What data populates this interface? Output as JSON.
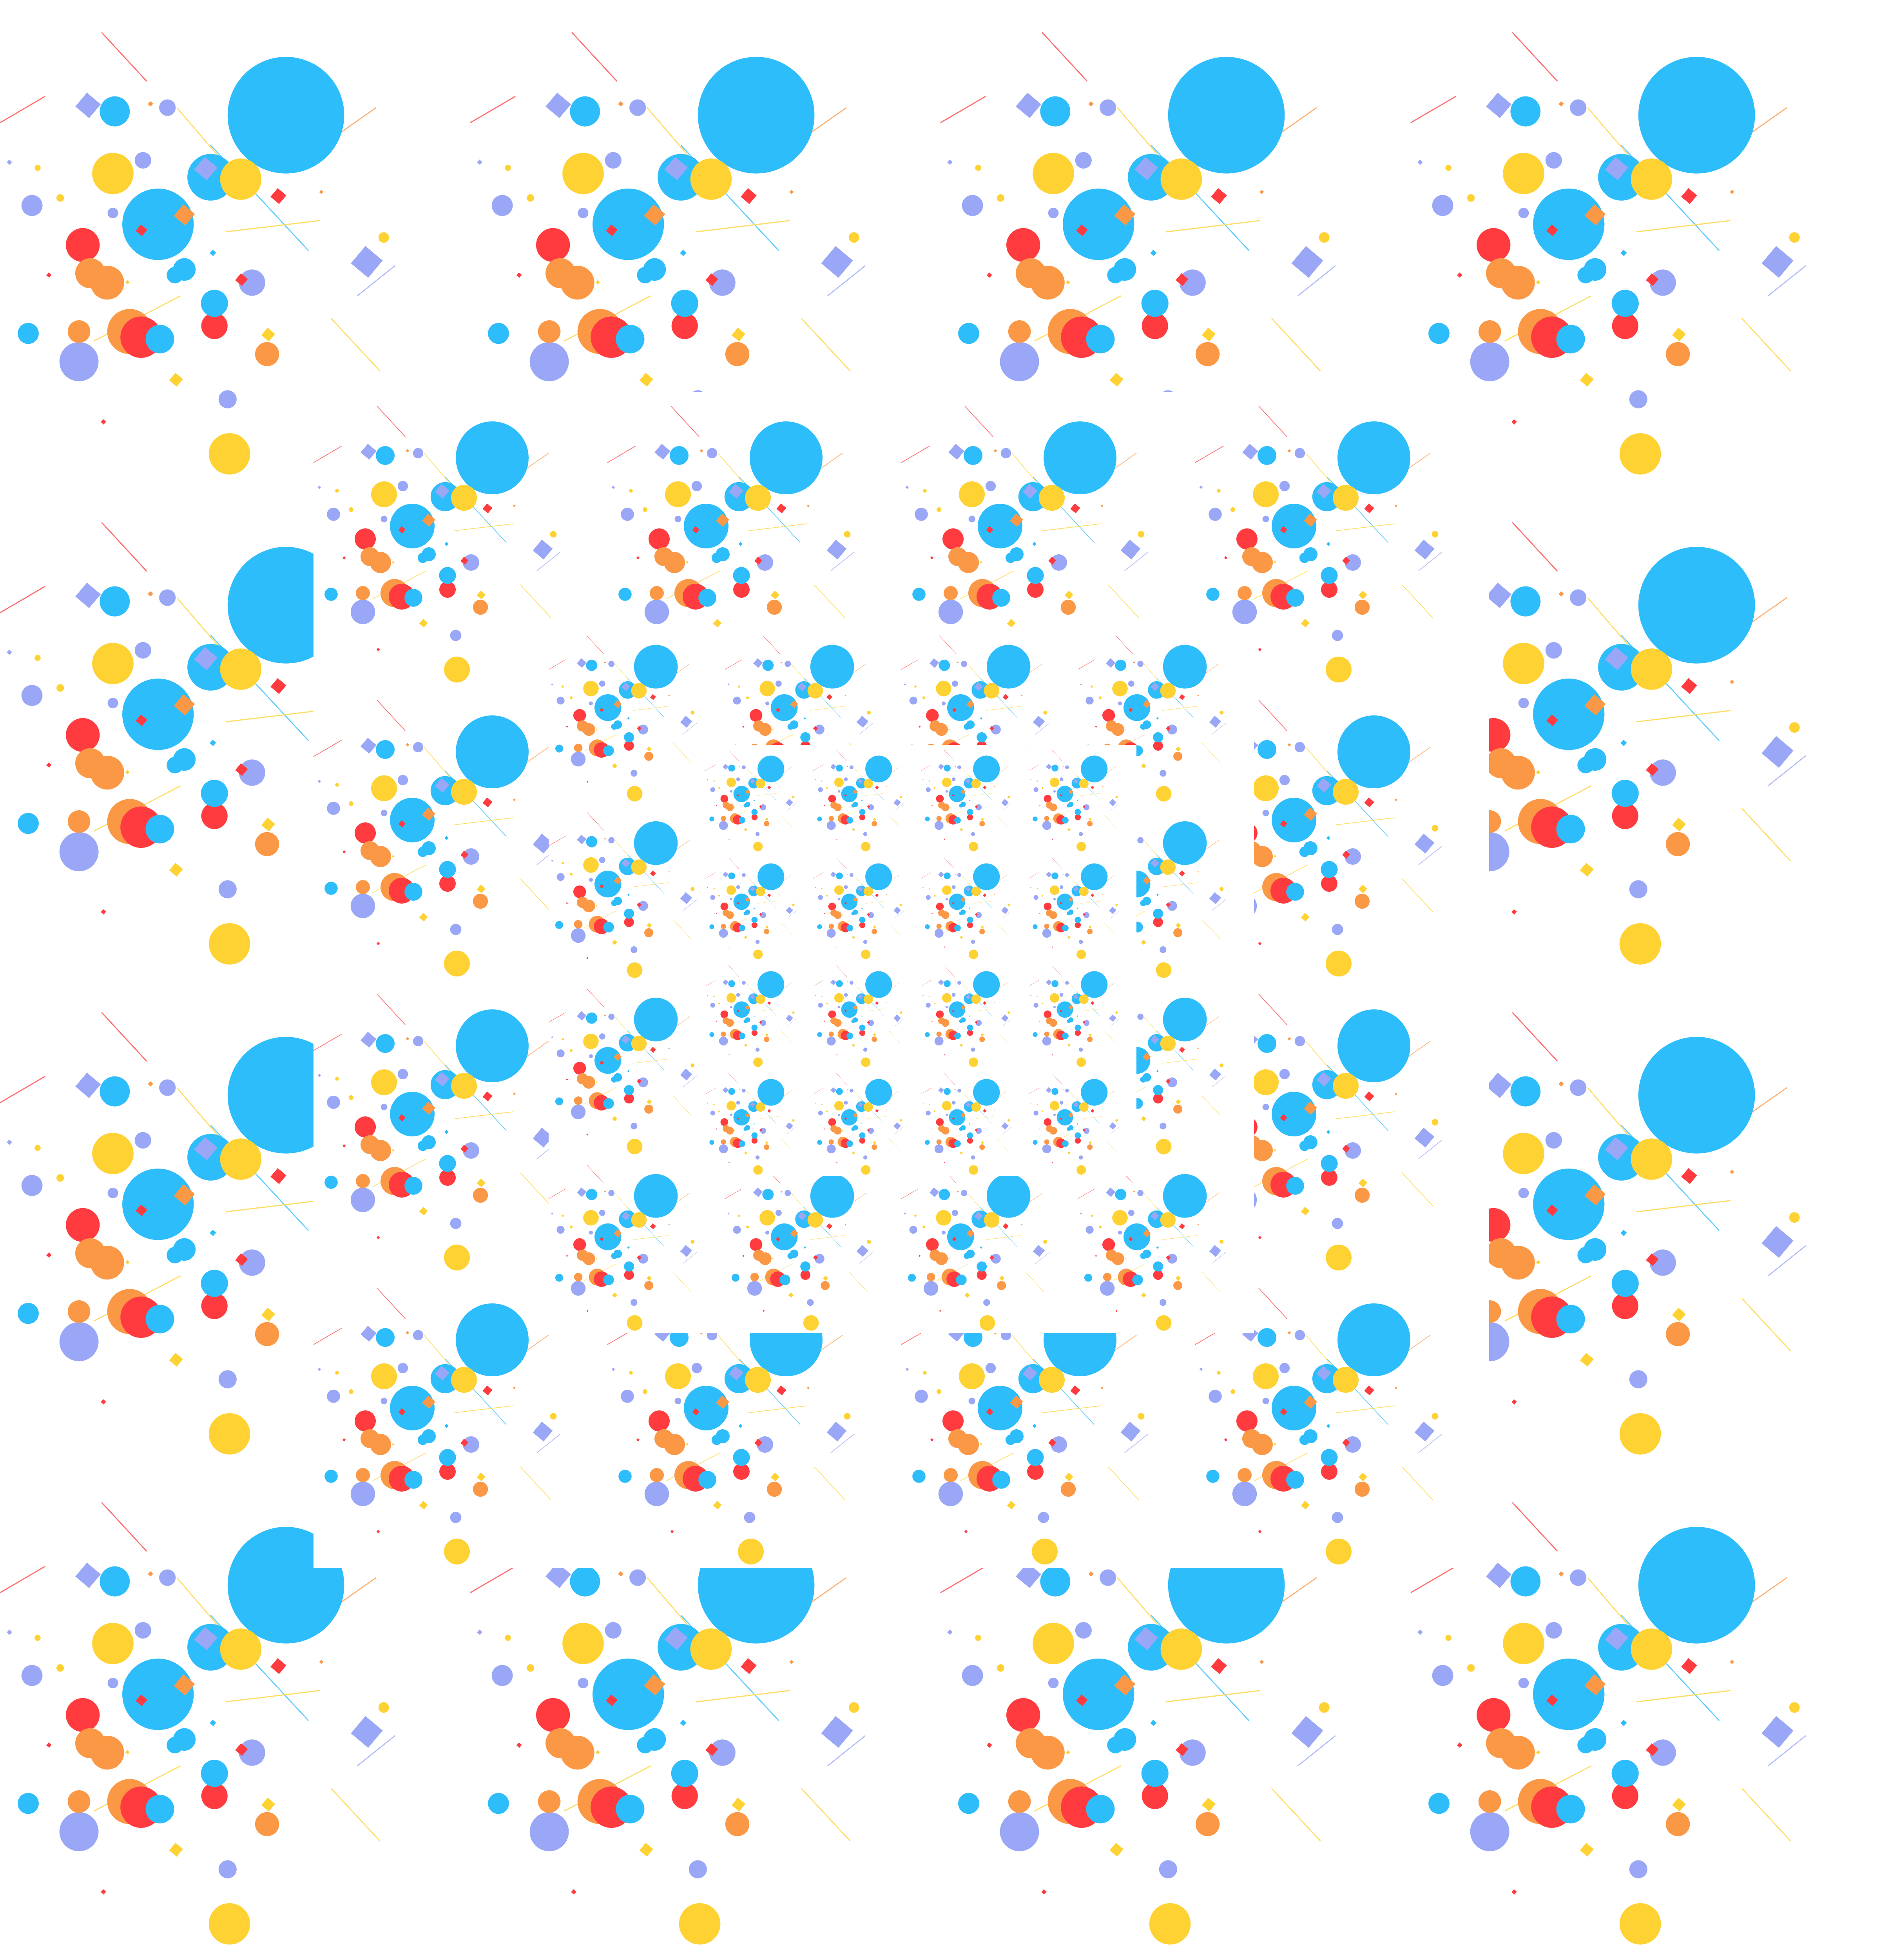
{
  "palette": {
    "blue": "#2ebdfb",
    "yellow": "#fed232",
    "red": "#ff3b3f",
    "orange": "#fb9846",
    "lavender": "#9aa7f6",
    "background": "#ffffff"
  },
  "pattern": {
    "description_free": true,
    "layers": [
      {
        "name": "outer-ring",
        "columns": 4,
        "rows": 4,
        "scale": 1.0
      },
      {
        "name": "second-ring",
        "columns": 4,
        "rows": 4,
        "scale": 0.6
      },
      {
        "name": "third-ring",
        "columns": 4,
        "rows": 4,
        "scale": 0.36
      },
      {
        "name": "inner-ring",
        "columns": 4,
        "rows": 4,
        "scale": 0.22
      }
    ]
  }
}
